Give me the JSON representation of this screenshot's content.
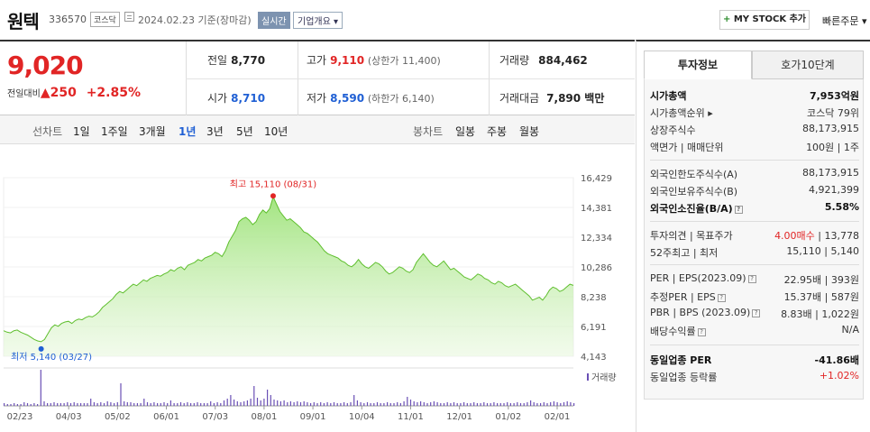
{
  "header": {
    "name": "원텍",
    "code": "336570",
    "market": "코스닥",
    "date": "2024.02.23 기준(장마감)",
    "realtime": "실시간",
    "overview_select": "기업개요 ▾",
    "mystock_plus": "+",
    "mystock_label": " MY STOCK 추가",
    "quick_order": "빠른주문 ▾"
  },
  "price": {
    "current": "9,020",
    "change_label": "전일대비",
    "change_arrow": "▲",
    "change": "250",
    "change_pct": "+2.85%",
    "prev_label": "전일",
    "prev": "8,770",
    "high_label": "고가",
    "high": "9,110",
    "upper_limit": "(상한가 11,400)",
    "volume_label": "거래량",
    "volume": "884,462",
    "open_label": "시가",
    "open": "8,710",
    "low_label": "저가",
    "low": "8,590",
    "lower_limit": "(하한가 6,140)",
    "amount_label": "거래대금",
    "amount": "7,890 백만"
  },
  "periods": {
    "line_label": "선차트",
    "line": [
      "1일",
      "1주일",
      "3개월",
      "1년",
      "3년",
      "5년",
      "10년"
    ],
    "candle_label": "봉차트",
    "candle": [
      "일봉",
      "주봉",
      "월봉"
    ],
    "active": "1년"
  },
  "chart_data": {
    "type": "area",
    "y_ticks": [
      "16,429",
      "14,381",
      "12,334",
      "10,286",
      "8,238",
      "6,191",
      "4,143"
    ],
    "ylim": [
      4143,
      16429
    ],
    "x_ticks": [
      "02/23",
      "04/03",
      "05/02",
      "06/01",
      "07/03",
      "08/01",
      "09/01",
      "10/04",
      "11/01",
      "12/01",
      "01/02",
      "02/01"
    ],
    "max_label": "최고 15,110 (08/31)",
    "min_label": "최저 5,140 (03/27)",
    "volume_label": "거래량",
    "series": [
      {
        "values": [
          5900,
          5800,
          5750,
          5900,
          5950,
          5800,
          5700,
          5600,
          5450,
          5300,
          5200,
          5140,
          5300,
          5700,
          6100,
          6300,
          6200,
          6400,
          6500,
          6550,
          6400,
          6600,
          6700,
          6650,
          6800,
          6900,
          6850,
          7000,
          7200,
          7500,
          7700,
          7900,
          8100,
          8400,
          8600,
          8500,
          8700,
          8900,
          9100,
          9000,
          9200,
          9400,
          9300,
          9500,
          9600,
          9700,
          9650,
          9800,
          9900,
          10100,
          10000,
          10200,
          10300,
          10100,
          10400,
          10500,
          10600,
          10800,
          10700,
          10900,
          11000,
          11100,
          11300,
          11200,
          11000,
          11400,
          12000,
          12400,
          12800,
          13400,
          13600,
          13700,
          13500,
          13200,
          13400,
          13900,
          14200,
          14000,
          14300,
          15110,
          14600,
          14100,
          13800,
          13500,
          13600,
          13400,
          13200,
          13000,
          12700,
          12600,
          12400,
          12200,
          12000,
          11700,
          11400,
          11200,
          11100,
          11000,
          10900,
          10700,
          10600,
          10400,
          10300,
          10500,
          10800,
          10500,
          10300,
          10200,
          10400,
          10600,
          10500,
          10300,
          10000,
          9800,
          9900,
          10100,
          10300,
          10200,
          10000,
          9900,
          10100,
          10600,
          10900,
          11200,
          10900,
          10600,
          10400,
          10300,
          10500,
          10700,
          10400,
          10100,
          10200,
          10000,
          9800,
          9600,
          9500,
          9400,
          9600,
          9800,
          9700,
          9500,
          9400,
          9200,
          9100,
          9300,
          9200,
          9000,
          8900,
          9000,
          9100,
          8900,
          8700,
          8500,
          8300,
          8000,
          8100,
          8200,
          8000,
          8300,
          8700,
          8900,
          8800,
          8600,
          8700,
          8900,
          9100,
          9020
        ]
      }
    ],
    "volume_values": [
      3,
      2,
      2,
      3,
      2,
      2,
      4,
      3,
      2,
      3,
      2,
      40,
      5,
      3,
      3,
      4,
      3,
      3,
      3,
      4,
      3,
      4,
      3,
      3,
      3,
      3,
      8,
      4,
      3,
      4,
      3,
      5,
      4,
      3,
      4,
      25,
      5,
      4,
      4,
      3,
      3,
      3,
      8,
      4,
      3,
      4,
      3,
      3,
      4,
      3,
      6,
      3,
      3,
      4,
      3,
      4,
      3,
      3,
      4,
      3,
      3,
      3,
      5,
      3,
      4,
      3,
      6,
      8,
      12,
      7,
      5,
      4,
      5,
      6,
      8,
      22,
      9,
      6,
      8,
      18,
      12,
      7,
      6,
      5,
      6,
      4,
      5,
      4,
      5,
      4,
      5,
      4,
      3,
      4,
      3,
      4,
      3,
      4,
      3,
      4,
      3,
      3,
      4,
      3,
      4,
      12,
      6,
      4,
      3,
      4,
      3,
      3,
      4,
      3,
      3,
      4,
      3,
      3,
      4,
      3,
      5,
      10,
      7,
      5,
      4,
      5,
      4,
      3,
      4,
      5,
      4,
      3,
      3,
      4,
      3,
      4,
      3,
      3,
      4,
      3,
      3,
      4,
      3,
      3,
      4,
      3,
      3,
      4,
      3,
      3,
      3,
      4,
      3,
      3,
      4,
      3,
      3,
      4,
      6,
      4,
      3,
      3,
      4,
      3,
      4,
      5,
      4,
      3,
      4,
      5,
      4,
      3
    ]
  },
  "right": {
    "tab_invest": "투자정보",
    "tab_hoga": "호가10단계",
    "rows": [
      {
        "k": "시가총액",
        "v": "7,953억원"
      },
      {
        "k": "시가총액순위 ▸",
        "v": "코스닥 79위"
      },
      {
        "k": "상장주식수",
        "v": "88,173,915"
      },
      {
        "k": "액면가 | 매매단위",
        "v": "100원 | 1주"
      },
      {
        "k": "외국인한도주식수(A)",
        "v": "88,173,915"
      },
      {
        "k": "외국인보유주식수(B)",
        "v": "4,921,399"
      },
      {
        "k": "외국인소진율(B/A)",
        "v": "5.58%"
      },
      {
        "k": "투자의견 | 목표주가",
        "v1": "4.00매수",
        "v2": " | 13,778"
      },
      {
        "k": "52주최고 | 최저",
        "v": "15,110 | 5,140"
      },
      {
        "k": "PER | EPS(2023.09)",
        "v": "22.95배 | 393원"
      },
      {
        "k": "추정PER | EPS",
        "v": "15.37배 | 587원"
      },
      {
        "k": "PBR | BPS (2023.09)",
        "v": "8.83배 | 1,022원"
      },
      {
        "k": "배당수익률",
        "v": "N/A"
      },
      {
        "k": "동일업종 PER",
        "v": "-41.86배"
      },
      {
        "k": "동일업종 등락률",
        "v": "+1.02%"
      }
    ]
  },
  "colors": {
    "up": "#e12525",
    "down": "#1f5fd4",
    "area": "#9ee37a",
    "line": "#5fbf2e"
  }
}
